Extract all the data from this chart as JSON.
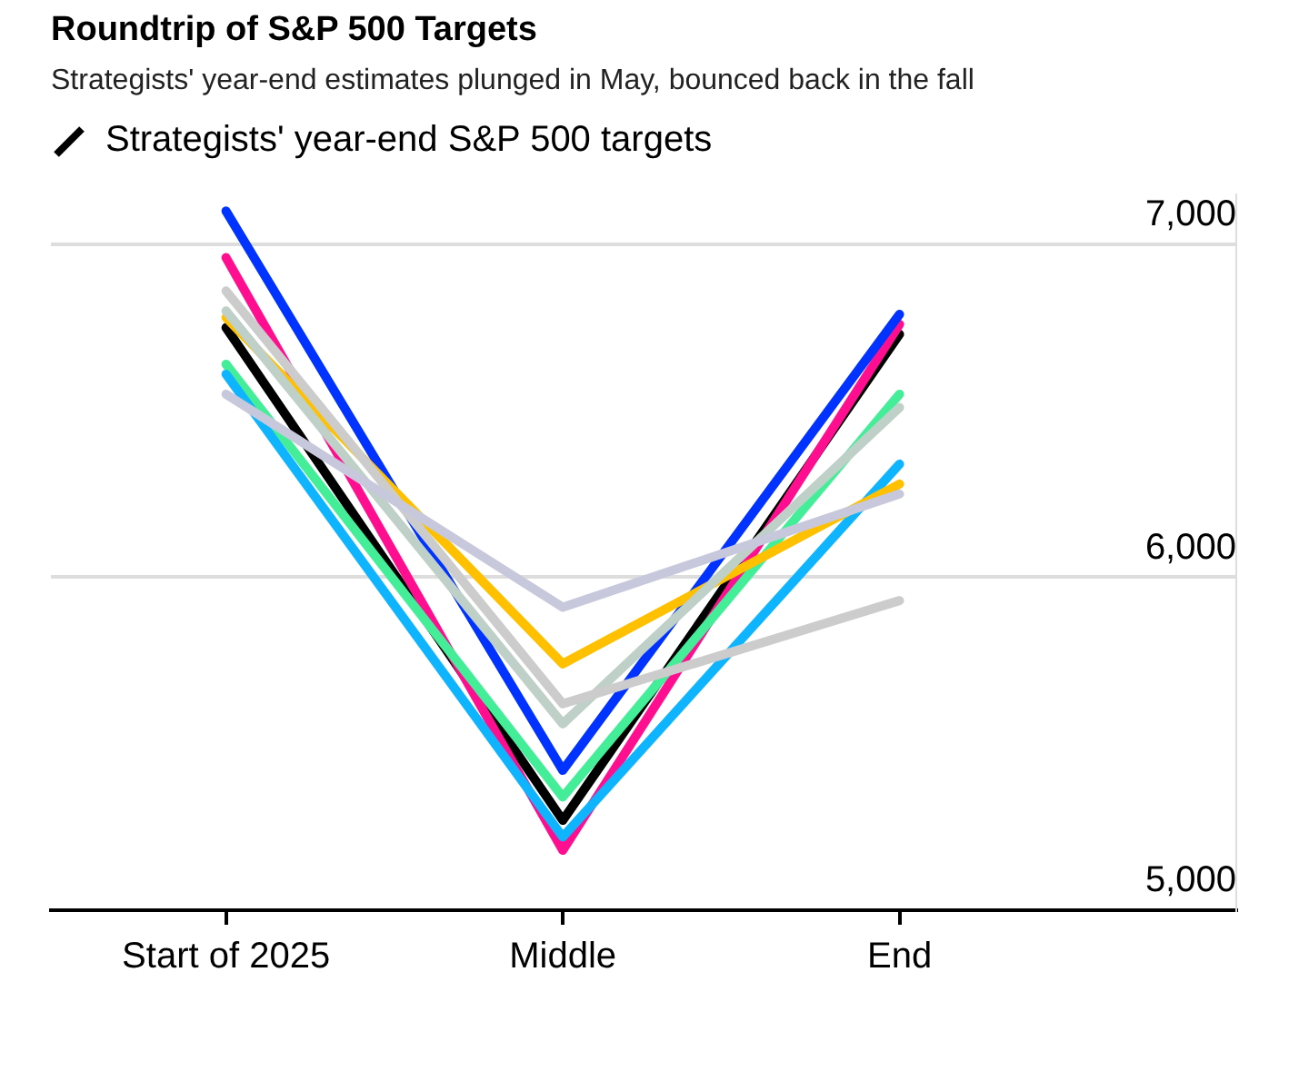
{
  "chart_data": {
    "type": "line",
    "title": "Roundtrip of S&P 500 Targets",
    "subtitle": "Strategists' year-end estimates plunged in May, bounced back in the fall",
    "legend_title": "Strategists' year-end S&P 500 targets",
    "categories": [
      "Start of 2025",
      "Middle",
      "End"
    ],
    "series": [
      {
        "color": "#c8c8dc",
        "values": [
          6550,
          5910,
          6250
        ]
      },
      {
        "color": "#cccccc",
        "values": [
          6860,
          5620,
          5930
        ]
      },
      {
        "color": "#bfd0c8",
        "values": [
          6800,
          5560,
          6510
        ]
      },
      {
        "color": "#ffc000",
        "values": [
          6780,
          5740,
          6280
        ]
      },
      {
        "color": "#0fb4ff",
        "values": [
          6610,
          5220,
          6340
        ]
      },
      {
        "color": "#44ee99",
        "values": [
          6640,
          5340,
          6550
        ]
      },
      {
        "color": "#0033ff",
        "values": [
          7100,
          5420,
          6790
        ]
      },
      {
        "color": "#ff0f8f",
        "values": [
          6960,
          5180,
          6760
        ]
      },
      {
        "color": "#000000",
        "values": [
          6750,
          5270,
          6730
        ]
      }
    ],
    "yticks": [
      {
        "value": 5000,
        "label": "5,000"
      },
      {
        "value": 6000,
        "label": "6,000"
      },
      {
        "value": 7000,
        "label": "7,000"
      }
    ],
    "ylim": [
      5000,
      7150
    ],
    "grid": "y",
    "line_style": "solid"
  }
}
